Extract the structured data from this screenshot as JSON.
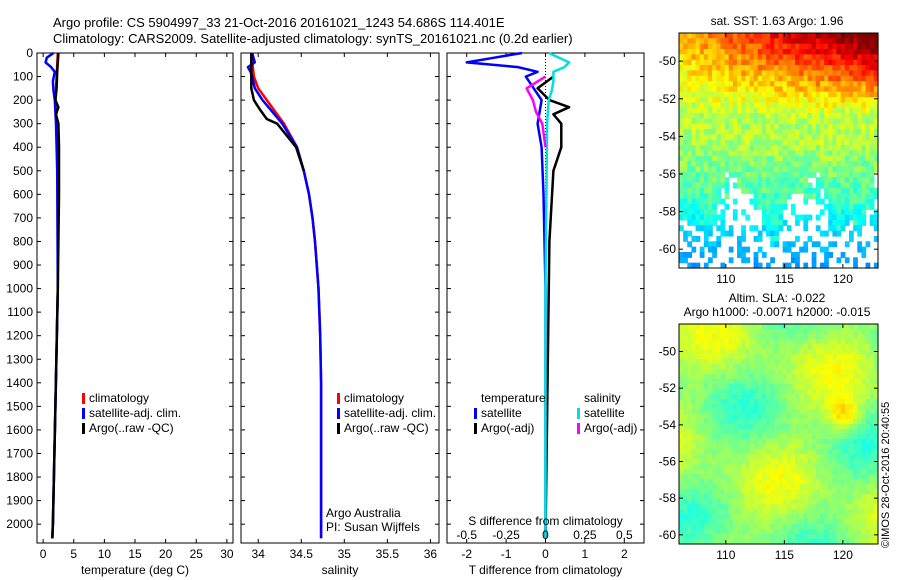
{
  "header": {
    "line1": "Argo profile: CS 5904997_33 21-Oct-2016 20161021_1243 54.686S 114.401E",
    "line2": "Climatology: CARS2009. Satellite-adjusted climatology: synTS_20161021.nc (0.2d earlier)"
  },
  "colors": {
    "climatology": "#ff0000",
    "satellite": "#0000ff",
    "argo": "#000000",
    "salinity_satellite": "#00e0e0",
    "salinity_argo": "#ff00ff"
  },
  "chart_data": [
    {
      "type": "line",
      "id": "temperature",
      "xlabel": "temperature (deg C)",
      "xlim": [
        -1,
        31
      ],
      "xticks": [
        0,
        5,
        10,
        15,
        20,
        25,
        30
      ],
      "ylim": [
        2080,
        0
      ],
      "yticks": [
        0,
        100,
        200,
        300,
        400,
        500,
        600,
        700,
        800,
        900,
        1000,
        1100,
        1200,
        1300,
        1400,
        1500,
        1600,
        1700,
        1800,
        1900,
        2000
      ],
      "legend": [
        "climatology",
        "satellite-adj. clim.",
        "Argo(..raw -QC)"
      ],
      "series": [
        {
          "key": "climatology",
          "depth": [
            0,
            50,
            100,
            150,
            200,
            300,
            500,
            1000,
            1500,
            2000,
            2060
          ],
          "values": [
            2.4,
            2.3,
            2.2,
            2.1,
            2.0,
            2.2,
            2.4,
            2.4,
            2.0,
            1.6,
            1.5
          ]
        },
        {
          "key": "satellite",
          "depth": [
            0,
            20,
            40,
            60,
            80,
            120,
            160,
            200,
            300,
            500,
            1000,
            1500,
            2000,
            2060
          ],
          "values": [
            1.7,
            0.6,
            0.4,
            1.3,
            1.9,
            1.6,
            1.7,
            1.9,
            2.1,
            2.3,
            2.4,
            2.0,
            1.6,
            1.5
          ]
        },
        {
          "key": "argo",
          "depth": [
            0,
            40,
            80,
            150,
            200,
            230,
            260,
            300,
            400,
            600,
            800,
            1000,
            1500,
            2000,
            2060
          ],
          "values": [
            2.5,
            2.4,
            2.3,
            2.2,
            2.0,
            2.5,
            2.1,
            2.5,
            2.6,
            2.6,
            2.5,
            2.4,
            2.0,
            1.6,
            1.5
          ]
        }
      ]
    },
    {
      "type": "line",
      "id": "salinity",
      "xlabel": "salinity",
      "xlim": [
        33.8,
        36.1
      ],
      "xticks": [
        34,
        34.5,
        35,
        35.5,
        36
      ],
      "xticklabels": [
        "34",
        "34.5",
        "35",
        "35.5",
        "36"
      ],
      "ylim": [
        2080,
        0
      ],
      "legend": [
        "climatology",
        "satellite-adj. clim.",
        "Argo(..raw -QC)"
      ],
      "annotations": [
        "Argo Australia",
        "PI: Susan Wijffels"
      ],
      "series": [
        {
          "key": "climatology",
          "depth": [
            0,
            100,
            150,
            200,
            300,
            400,
            500,
            600,
            700,
            800,
            900,
            1000,
            1200,
            1400,
            1600,
            2000,
            2060
          ],
          "values": [
            33.92,
            33.95,
            34.0,
            34.1,
            34.3,
            34.45,
            34.53,
            34.59,
            34.63,
            34.66,
            34.68,
            34.7,
            34.72,
            34.73,
            34.73,
            34.73,
            34.73
          ]
        },
        {
          "key": "satellite",
          "depth": [
            0,
            40,
            60,
            80,
            100,
            150,
            200,
            300,
            400,
            500,
            600,
            700,
            800,
            1000,
            1200,
            1400,
            1600,
            2000,
            2060
          ],
          "values": [
            33.93,
            33.96,
            33.88,
            33.91,
            33.93,
            33.96,
            34.05,
            34.28,
            34.45,
            34.53,
            34.59,
            34.63,
            34.66,
            34.7,
            34.72,
            34.73,
            34.73,
            34.73,
            34.73
          ]
        },
        {
          "key": "argo",
          "depth": [
            0,
            80,
            150,
            200,
            240,
            280,
            300,
            400,
            500
          ],
          "values": [
            33.92,
            33.92,
            33.92,
            33.95,
            34.02,
            34.1,
            34.22,
            34.44,
            34.53
          ]
        }
      ]
    },
    {
      "type": "line",
      "id": "difference",
      "xlabel": "T difference from climatology",
      "xlabel_top": "S difference from climatology",
      "xlim": [
        -2.5,
        2.5
      ],
      "xticks": [
        -2,
        -1,
        0,
        1,
        2
      ],
      "xticks_top": [
        -0.5,
        -0.25,
        0,
        0.25,
        0.5
      ],
      "ylim": [
        2080,
        0
      ],
      "legend_titles": [
        "temperature",
        "salinity"
      ],
      "legend": [
        "satellite",
        "Argo(-adj)",
        "satellite",
        "Argo(-adj)"
      ],
      "series": [
        {
          "key": "satellite",
          "depth": [
            0,
            20,
            40,
            60,
            80,
            100,
            150,
            200,
            300,
            400,
            600,
            1000,
            2060
          ],
          "values": [
            -0.6,
            -1.3,
            -2.0,
            -0.7,
            -0.2,
            -0.5,
            -0.3,
            -0.1,
            -0.2,
            -0.1,
            -0.05,
            0,
            0
          ]
        },
        {
          "key": "argo",
          "depth": [
            100,
            150,
            200,
            230,
            260,
            300,
            400,
            500,
            800,
            2060
          ],
          "values": [
            0.2,
            -0.2,
            0.1,
            0.6,
            0.2,
            0.4,
            0.4,
            0.2,
            0.1,
            0
          ]
        },
        {
          "key": "salinity_satellite",
          "depth": [
            0,
            40,
            60,
            80,
            120,
            160,
            200,
            300,
            1000,
            2060
          ],
          "values": [
            0.02,
            0.15,
            0.12,
            0.05,
            0.05,
            0.04,
            0.02,
            0.01,
            0,
            0
          ]
        },
        {
          "key": "salinity_argo",
          "depth": [
            100,
            150,
            200,
            250,
            300,
            400
          ],
          "values": [
            0,
            -0.12,
            -0.08,
            -0.06,
            -0.02,
            0
          ]
        }
      ]
    },
    {
      "type": "heatmap",
      "id": "sst-map",
      "title": "sat. SST: 1.63 Argo: 1.96",
      "xlim": [
        106,
        123
      ],
      "ylim": [
        -61,
        -48.5
      ],
      "xticks": [
        110,
        115,
        120
      ],
      "yticks": [
        -50,
        -52,
        -54,
        -56,
        -58,
        -60
      ]
    },
    {
      "type": "heatmap",
      "id": "sla-map",
      "title": "Altim. SLA: -0.022",
      "subtitle": "Argo h1000: -0.0071 h2000: -0.015",
      "xlim": [
        106,
        123
      ],
      "ylim": [
        -60.5,
        -48.5
      ],
      "xticks": [
        110,
        115,
        120
      ],
      "yticks": [
        -50,
        -52,
        -54,
        -56,
        -58,
        -60
      ]
    }
  ],
  "watermark": "©IMOS 28-Oct-2016 20:40:55"
}
